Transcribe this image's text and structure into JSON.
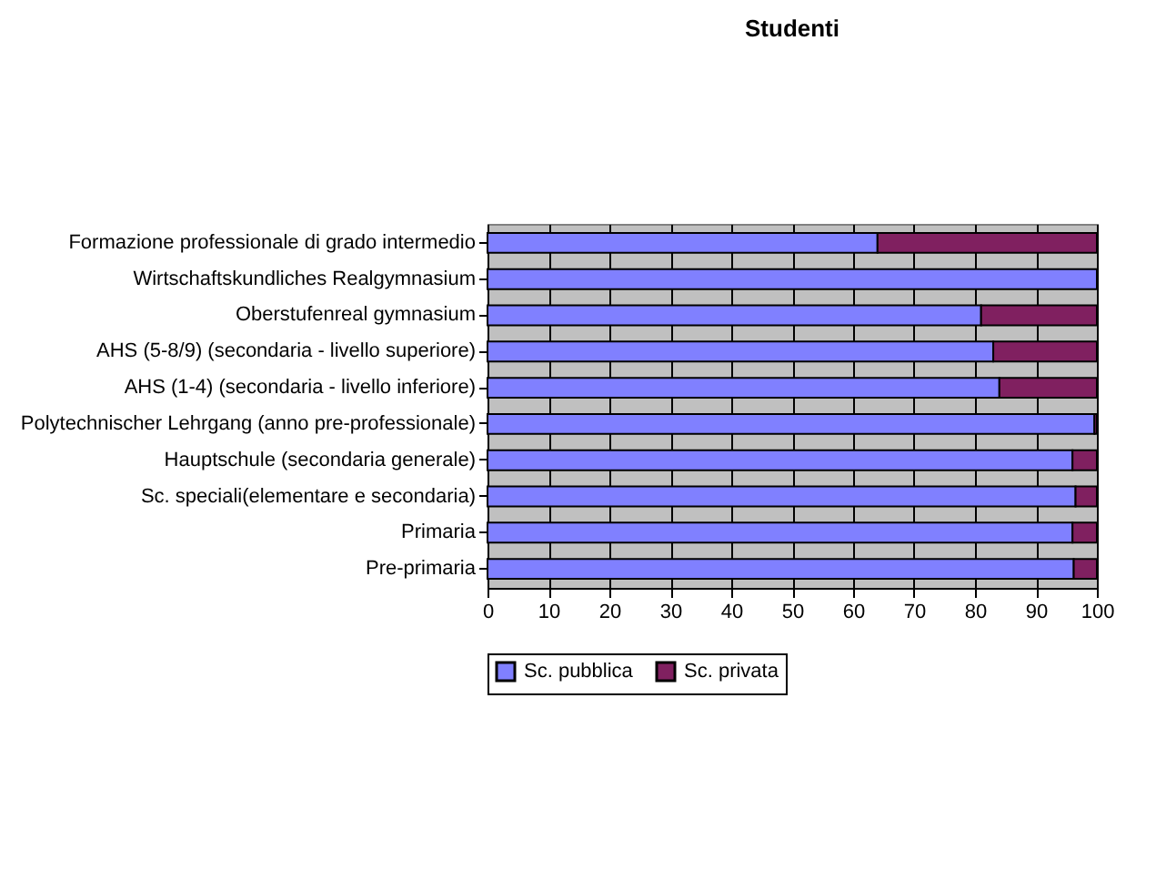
{
  "chart_data": {
    "type": "bar",
    "orientation": "horizontal",
    "stacked": true,
    "title": "Studenti",
    "categories": [
      "Formazione professionale di grado intermedio",
      "Wirtschaftskundliches Realgymnasium",
      "Oberstufenreal gymnasium",
      "AHS (5-8/9) (secondaria - livello superiore)",
      "AHS (1-4)  (secondaria - livello inferiore)",
      "Polytechnischer Lehrgang (anno pre-professionale)",
      "Hauptschule (secondaria generale)",
      "Sc. speciali(elementare e secondaria)",
      "Primaria",
      "Pre-primaria"
    ],
    "series": [
      {
        "name": "Sc. pubblica",
        "color": "#8080ff",
        "values": [
          64,
          100,
          81,
          83,
          84,
          99.6,
          96,
          96.5,
          96,
          96.2
        ]
      },
      {
        "name": "Sc. privata",
        "color": "#802060",
        "values": [
          36,
          0,
          19,
          17,
          16,
          0.4,
          4,
          3.5,
          4,
          3.8
        ]
      }
    ],
    "xlim": [
      0,
      100
    ],
    "xticks": [
      0,
      10,
      20,
      30,
      40,
      50,
      60,
      70,
      80,
      90,
      100
    ],
    "grid": "x",
    "legend": "bottom"
  }
}
